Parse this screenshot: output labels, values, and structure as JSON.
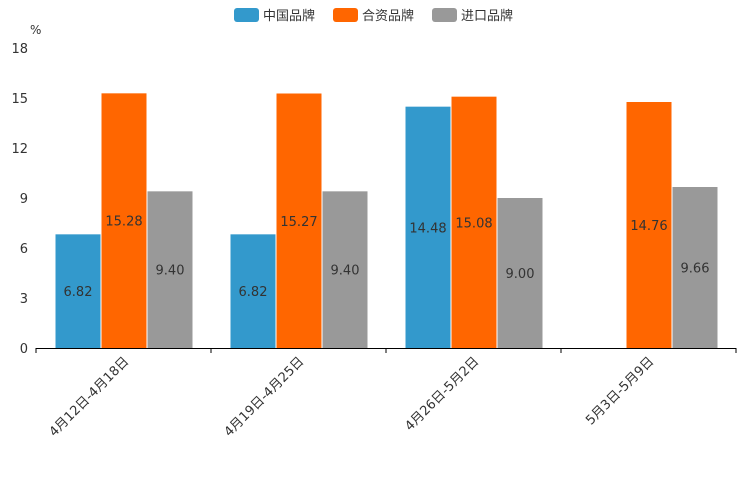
{
  "chart_data": {
    "type": "bar",
    "title": "",
    "unit": "%",
    "xlabel": "",
    "ylabel": "%",
    "ylim": [
      0,
      18
    ],
    "yticks": [
      0,
      3,
      6,
      9,
      12,
      15,
      18
    ],
    "legend_position": "top-center",
    "grid": false,
    "categories": [
      "4月12日-4月18日",
      "4月19日-4月25日",
      "4月26日-5月2日",
      "5月3日-5月9日"
    ],
    "series": [
      {
        "name": "中国品牌",
        "color": "#3399cc",
        "values": [
          6.82,
          6.82,
          14.48,
          null
        ],
        "labels": [
          "6.82",
          "6.82",
          "14.48",
          ""
        ]
      },
      {
        "name": "合资品牌",
        "color": "#ff6600",
        "values": [
          15.28,
          15.27,
          15.08,
          14.76
        ],
        "labels": [
          "15.28",
          "15.27",
          "15.08",
          "14.76"
        ]
      },
      {
        "name": "进口品牌",
        "color": "#999999",
        "values": [
          9.4,
          9.4,
          9.0,
          9.66
        ],
        "labels": [
          "9.40",
          "9.40",
          "9.00",
          "9.66"
        ]
      }
    ]
  }
}
